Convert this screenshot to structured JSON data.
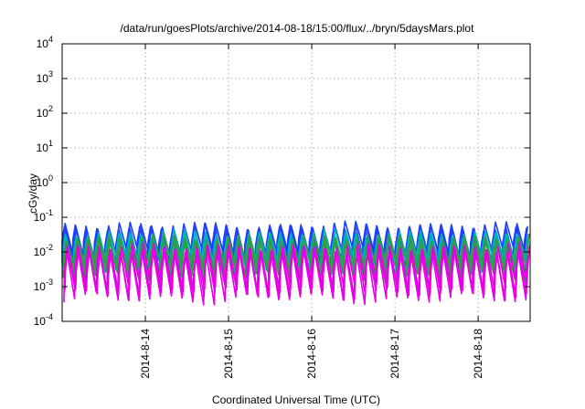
{
  "chart_data": {
    "type": "line",
    "title": "/data/run/goesPlots/archive/2014-08-18/15:00/flux/../bryn/5daysMars.plot",
    "xlabel": "Coordinated Universal Time (UTC)",
    "ylabel": "cGy/day",
    "yscale": "log",
    "ylim": [
      0.0001,
      10000
    ],
    "xlim": [
      "2014-08-13 00:00",
      "2014-08-18 15:00"
    ],
    "grid": true,
    "x_ticks": [
      "2014-8-14",
      "2014-8-15",
      "2014-8-16",
      "2014-8-17",
      "2014-8-18"
    ],
    "y_ticks": [
      {
        "base": "10",
        "exp": "-4",
        "value": 0.0001
      },
      {
        "base": "10",
        "exp": "-3",
        "value": 0.001
      },
      {
        "base": "10",
        "exp": "-2",
        "value": 0.01
      },
      {
        "base": "10",
        "exp": "-1",
        "value": 0.1
      },
      {
        "base": "10",
        "exp": "0",
        "value": 1
      },
      {
        "base": "10",
        "exp": "1",
        "value": 10
      },
      {
        "base": "10",
        "exp": "2",
        "value": 100
      },
      {
        "base": "10",
        "exp": "3",
        "value": 1000
      },
      {
        "base": "10",
        "exp": "4",
        "value": 10000
      }
    ],
    "cycle_hours": 3.1,
    "series": [
      {
        "color": "#1f3fff",
        "peak": 0.05,
        "trough": 0.006
      },
      {
        "color": "#00b3b3",
        "peak": 0.03,
        "trough": 0.0035
      },
      {
        "color": "#2e9e4a",
        "peak": 0.022,
        "trough": 0.0025
      },
      {
        "color": "#e600e6",
        "peak": 0.012,
        "trough": 0.0006
      }
    ]
  }
}
